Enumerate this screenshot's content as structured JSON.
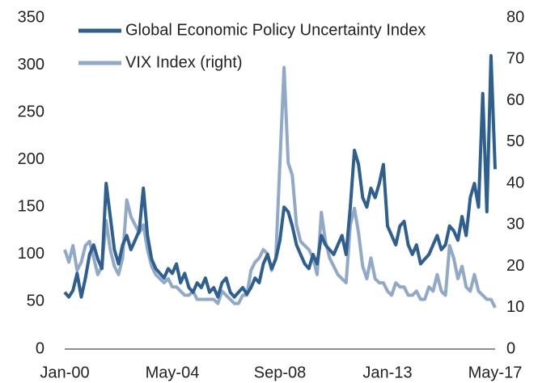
{
  "chart_data": {
    "type": "line",
    "categories": [
      "Jan-00",
      null,
      null,
      null,
      null,
      null,
      null,
      null,
      null,
      null,
      null,
      null,
      null,
      null,
      null,
      null,
      null,
      null,
      null,
      null,
      null,
      null,
      null,
      null,
      null,
      null,
      "May-04",
      null,
      null,
      null,
      null,
      null,
      null,
      null,
      null,
      null,
      null,
      null,
      null,
      null,
      null,
      null,
      null,
      null,
      null,
      null,
      null,
      null,
      null,
      null,
      null,
      null,
      "Sep-08",
      null,
      null,
      null,
      null,
      null,
      null,
      null,
      null,
      null,
      null,
      null,
      null,
      null,
      null,
      null,
      null,
      null,
      null,
      null,
      null,
      null,
      null,
      null,
      null,
      null,
      "Jan-13",
      null,
      null,
      null,
      null,
      null,
      null,
      null,
      null,
      null,
      null,
      null,
      null,
      null,
      null,
      null,
      null,
      null,
      null,
      null,
      null,
      null,
      null,
      null,
      null,
      null,
      "May-17"
    ],
    "series": [
      {
        "name": "Global Economic Policy Uncertainty Index",
        "color": "#2e5f8f",
        "axis": "y",
        "values": [
          60,
          55,
          62,
          80,
          55,
          75,
          100,
          110,
          95,
          85,
          175,
          140,
          105,
          90,
          110,
          120,
          105,
          115,
          125,
          170,
          120,
          95,
          85,
          80,
          75,
          85,
          80,
          90,
          70,
          80,
          65,
          60,
          70,
          65,
          75,
          60,
          65,
          55,
          70,
          75,
          60,
          55,
          60,
          65,
          58,
          65,
          75,
          70,
          90,
          100,
          85,
          95,
          115,
          150,
          145,
          130,
          110,
          100,
          90,
          85,
          100,
          90,
          120,
          110,
          105,
          100,
          110,
          120,
          100,
          150,
          210,
          195,
          160,
          150,
          170,
          160,
          175,
          195,
          130,
          120,
          110,
          130,
          135,
          110,
          100,
          110,
          90,
          95,
          100,
          110,
          120,
          105,
          110,
          130,
          125,
          115,
          140,
          120,
          160,
          175,
          150,
          270,
          145,
          310,
          190
        ]
      },
      {
        "name": "VIX Index (right)",
        "color": "#91a9c9",
        "axis": "y2",
        "values": [
          24,
          21,
          25,
          19,
          21,
          25,
          26,
          22,
          18,
          20,
          31,
          24,
          20,
          18,
          22,
          36,
          32,
          30,
          28,
          30,
          24,
          20,
          18,
          17,
          16,
          17,
          15,
          15,
          14,
          13,
          13,
          14,
          12,
          12,
          12,
          12,
          12,
          11,
          14,
          13,
          12,
          11,
          11,
          13,
          13,
          19,
          21,
          22,
          24,
          23,
          19,
          22,
          45,
          68,
          45,
          42,
          30,
          26,
          25,
          24,
          22,
          18,
          33,
          26,
          22,
          20,
          18,
          17,
          16,
          30,
          34,
          28,
          20,
          17,
          22,
          17,
          16,
          16,
          14,
          13,
          16,
          15,
          15,
          13,
          13,
          14,
          12,
          12,
          15,
          14,
          18,
          14,
          13,
          25,
          22,
          17,
          20,
          15,
          14,
          18,
          14,
          13,
          12,
          12,
          10
        ]
      }
    ],
    "ylim": [
      0,
      350
    ],
    "yticks": [
      0,
      50,
      100,
      150,
      200,
      250,
      300,
      350
    ],
    "y2lim": [
      0,
      80
    ],
    "y2ticks": [
      0,
      10,
      20,
      30,
      40,
      50,
      60,
      70,
      80
    ],
    "grid": false,
    "legend": "top-left"
  }
}
